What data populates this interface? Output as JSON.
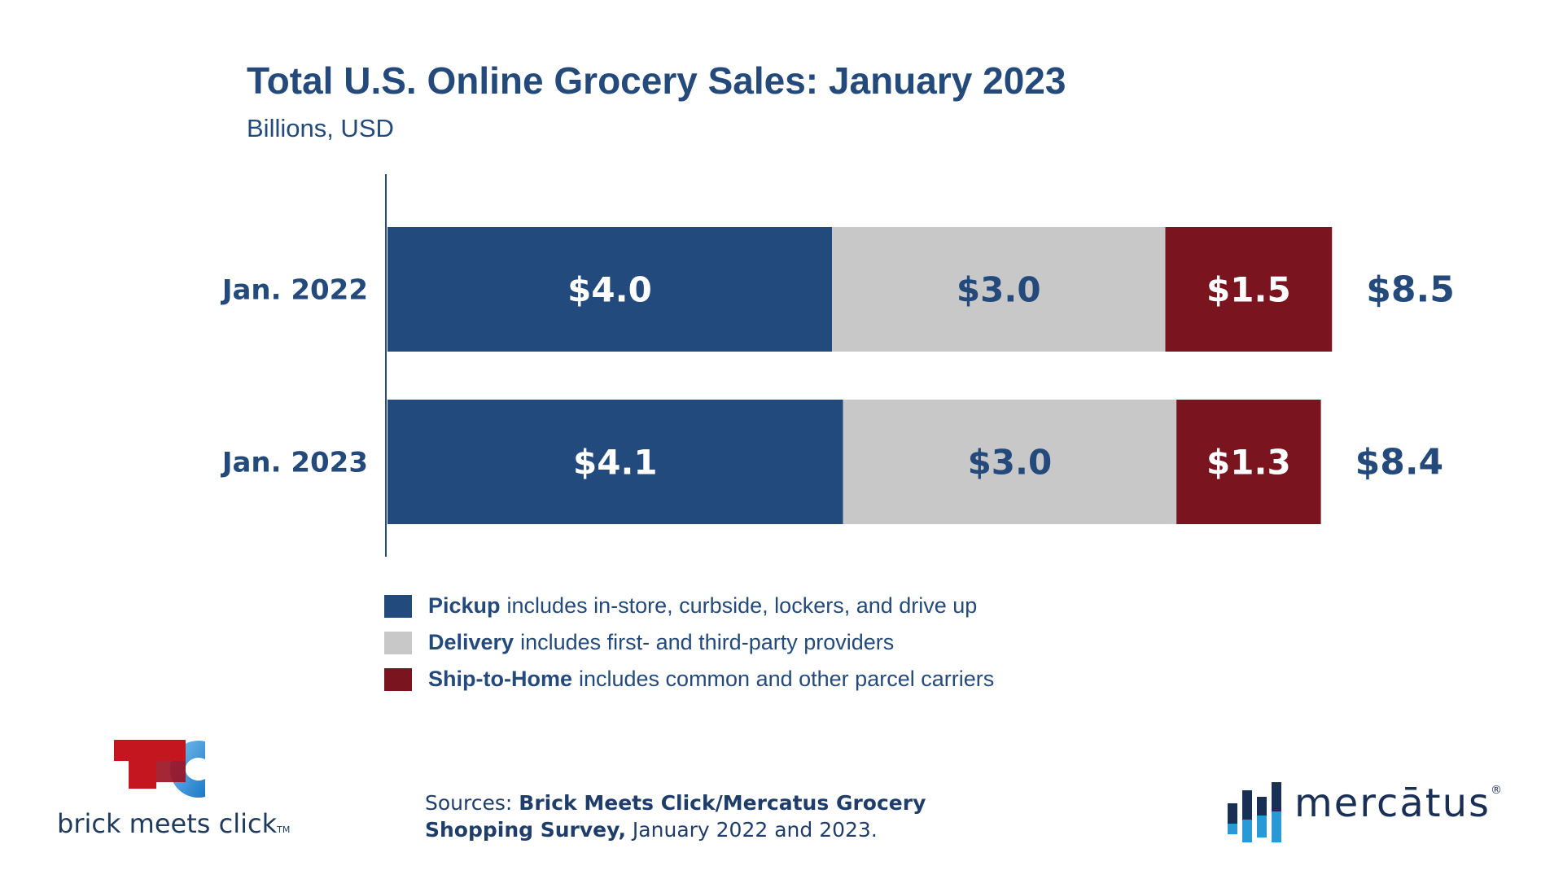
{
  "title": "Total U.S. Online Grocery Sales: January 2023",
  "subtitle": "Billions, USD",
  "chart_data": {
    "type": "bar",
    "orientation": "horizontal",
    "stacked": true,
    "title": "Total U.S. Online Grocery Sales: January 2023",
    "subtitle": "Billions, USD",
    "categories": [
      "Jan. 2022",
      "Jan. 2023"
    ],
    "series": [
      {
        "name": "Pickup",
        "values": [
          4.0,
          4.1
        ],
        "labels": [
          "$4.0",
          "$4.1"
        ],
        "color": "#234a7c",
        "label_color": "#ffffff"
      },
      {
        "name": "Delivery",
        "values": [
          3.0,
          3.0
        ],
        "labels": [
          "$3.0",
          "$3.0"
        ],
        "color": "#c8c8c8",
        "label_color": "#244a7c"
      },
      {
        "name": "Ship-to-Home",
        "values": [
          1.5,
          1.3
        ],
        "labels": [
          "$1.5",
          "$1.3"
        ],
        "color": "#7a141e",
        "label_color": "#ffffff"
      }
    ],
    "totals": [
      8.5,
      8.4
    ],
    "total_labels": [
      "$8.5",
      "$8.4"
    ],
    "xlim": [
      0,
      8.5
    ],
    "grid": false,
    "legend_position": "bottom"
  },
  "legend": [
    {
      "name": "Pickup",
      "desc": "includes in-store, curbside, lockers, and drive up",
      "color": "#234a7c"
    },
    {
      "name": "Delivery",
      "desc": "includes first- and third-party providers",
      "color": "#c8c8c8"
    },
    {
      "name": "Ship-to-Home",
      "desc": "includes common and other parcel carriers",
      "color": "#7a141e"
    }
  ],
  "sources": {
    "prefix": "Sources: ",
    "bold": "Brick Meets Click/Mercatus Grocery Shopping Survey,",
    "suffix": " January 2022 and 2023."
  },
  "logos": {
    "brick_meets_click": "brick meets click",
    "brick_meets_click_tm": "TM",
    "mercatus": "mercātus",
    "mercatus_reg": "®"
  },
  "colors": {
    "brand_blue": "#244a7c",
    "pickup": "#234a7c",
    "delivery": "#c8c8c8",
    "ship_to_home": "#7a141e"
  }
}
